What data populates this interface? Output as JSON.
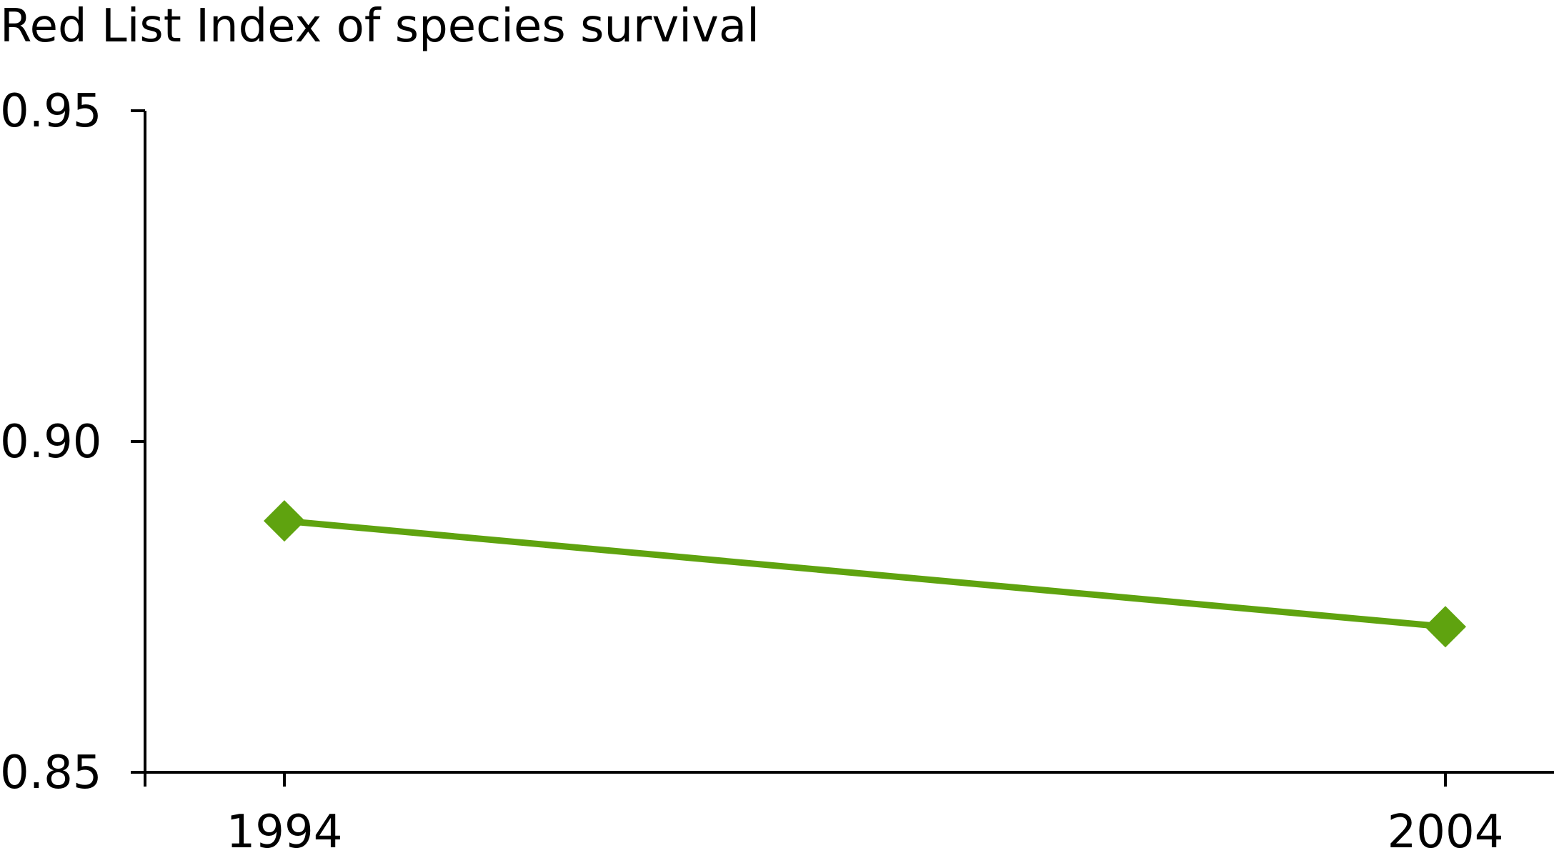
{
  "chart_data": {
    "type": "line",
    "title": "Red List Index of species survival",
    "xlabel": "",
    "ylabel": "",
    "x": [
      "1994",
      "2004"
    ],
    "series": [
      {
        "values": [
          0.888,
          0.872
        ]
      }
    ],
    "ylim": [
      0.85,
      0.95
    ],
    "yticks": [
      "0.85",
      "0.90",
      "0.95"
    ],
    "xticks": [
      "1994",
      "2004"
    ],
    "grid": false,
    "legend": "none",
    "colors": {
      "series": "#5fa30f",
      "axis": "#000000"
    },
    "marker": "diamond"
  }
}
